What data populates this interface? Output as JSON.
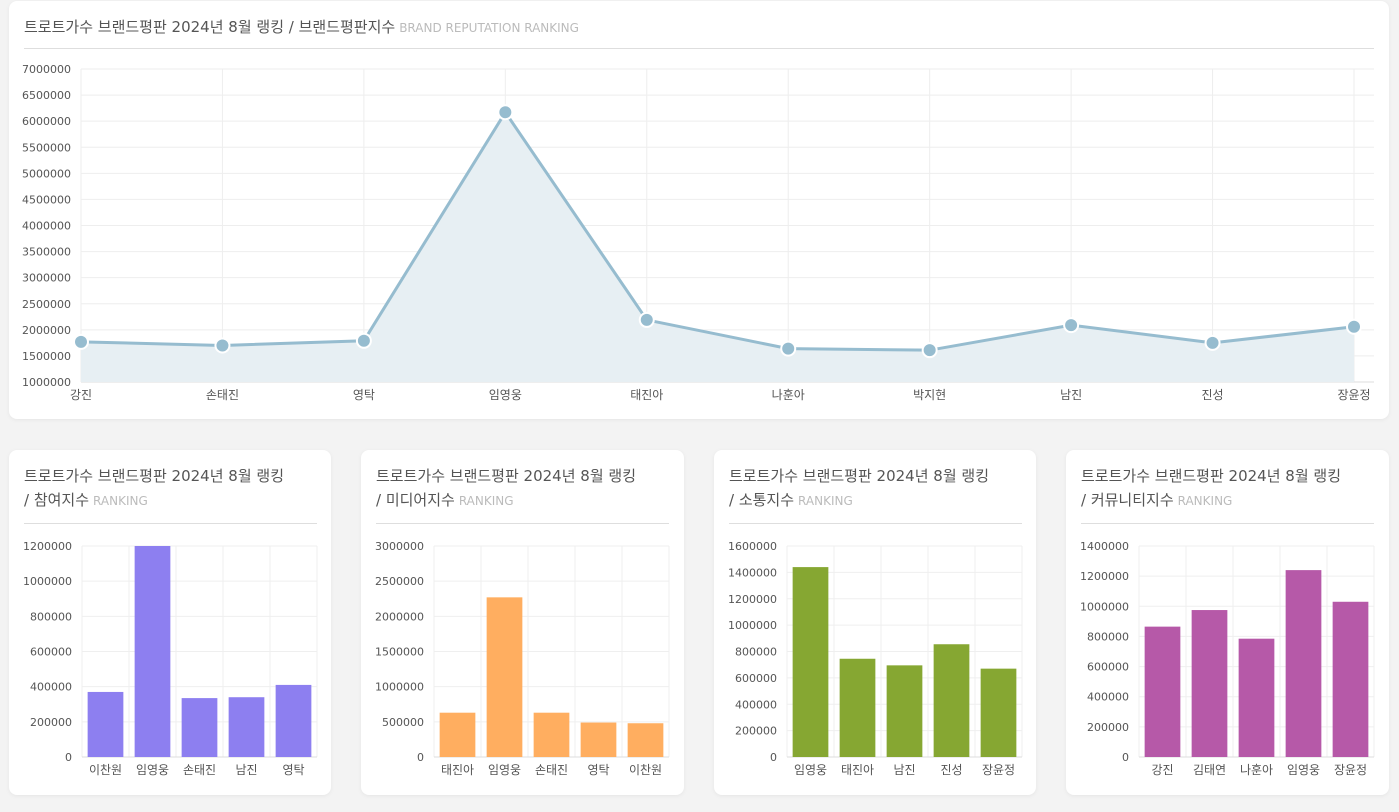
{
  "main": {
    "title": "트로트가수 브랜드평판 2024년 8월 랭킹 / 브랜드평판지수",
    "subtitle": "BRAND REPUTATION RANKING"
  },
  "small": [
    {
      "title_line1": "트로트가수 브랜드평판 2024년 8월 랭킹",
      "title_line2": "/ 참여지수",
      "subtitle": "RANKING"
    },
    {
      "title_line1": "트로트가수 브랜드평판 2024년 8월 랭킹",
      "title_line2": "/ 미디어지수",
      "subtitle": "RANKING"
    },
    {
      "title_line1": "트로트가수 브랜드평판 2024년 8월 랭킹",
      "title_line2": "/ 소통지수",
      "subtitle": "RANKING"
    },
    {
      "title_line1": "트로트가수 브랜드평판 2024년 8월 랭킹",
      "title_line2": "/ 커뮤니티지수",
      "subtitle": "RANKING"
    }
  ],
  "chart_data": [
    {
      "type": "area",
      "title": "트로트가수 브랜드평판 2024년 8월 랭킹 / 브랜드평판지수",
      "categories": [
        "강진",
        "손태진",
        "영탁",
        "임영웅",
        "태진아",
        "나훈아",
        "박지현",
        "남진",
        "진성",
        "장윤정"
      ],
      "values": [
        1770000,
        1700000,
        1790000,
        6170000,
        2190000,
        1640000,
        1610000,
        2090000,
        1750000,
        2060000
      ],
      "ylim": [
        1000000,
        7000000
      ],
      "yticks": [
        "1000000",
        "1500000",
        "2000000",
        "2500000",
        "3000000",
        "3500000",
        "4000000",
        "4500000",
        "5000000",
        "5500000",
        "6000000",
        "6500000",
        "7000000"
      ],
      "grid": true,
      "color": "#96bccf",
      "fill": "#e7eff3"
    },
    {
      "type": "bar",
      "title": "트로트가수 브랜드평판 2024년 8월 랭킹 / 참여지수",
      "categories": [
        "이찬원",
        "임영웅",
        "손태진",
        "남진",
        "영탁"
      ],
      "values": [
        370000,
        1200000,
        335000,
        340000,
        410000
      ],
      "ylim": [
        0,
        1200000
      ],
      "yticks": [
        "0",
        "200000",
        "400000",
        "600000",
        "800000",
        "1000000",
        "1200000"
      ],
      "grid": true,
      "color": "#8d7ff0"
    },
    {
      "type": "bar",
      "title": "트로트가수 브랜드평판 2024년 8월 랭킹 / 미디어지수",
      "categories": [
        "태진아",
        "임영웅",
        "손태진",
        "영탁",
        "이찬원"
      ],
      "values": [
        630000,
        2270000,
        630000,
        490000,
        480000
      ],
      "ylim": [
        0,
        3000000
      ],
      "yticks": [
        "0",
        "500000",
        "1000000",
        "1500000",
        "2000000",
        "2500000",
        "3000000"
      ],
      "grid": true,
      "color": "#ffae60"
    },
    {
      "type": "bar",
      "title": "트로트가수 브랜드평판 2024년 8월 랭킹 / 소통지수",
      "categories": [
        "임영웅",
        "태진아",
        "남진",
        "진성",
        "장윤정"
      ],
      "values": [
        1440000,
        745000,
        695000,
        855000,
        670000
      ],
      "ylim": [
        0,
        1600000
      ],
      "yticks": [
        "0",
        "200000",
        "400000",
        "600000",
        "800000",
        "1000000",
        "1200000",
        "1400000",
        "1600000"
      ],
      "grid": true,
      "color": "#86a732"
    },
    {
      "type": "bar",
      "title": "트로트가수 브랜드평판 2024년 8월 랭킹 / 커뮤니티지수",
      "categories": [
        "강진",
        "김태연",
        "나훈아",
        "임영웅",
        "장윤정"
      ],
      "values": [
        865000,
        975000,
        785000,
        1240000,
        1030000
      ],
      "ylim": [
        0,
        1400000
      ],
      "yticks": [
        "0",
        "200000",
        "400000",
        "600000",
        "800000",
        "1000000",
        "1200000",
        "1400000"
      ],
      "grid": true,
      "color": "#b659a8"
    }
  ]
}
